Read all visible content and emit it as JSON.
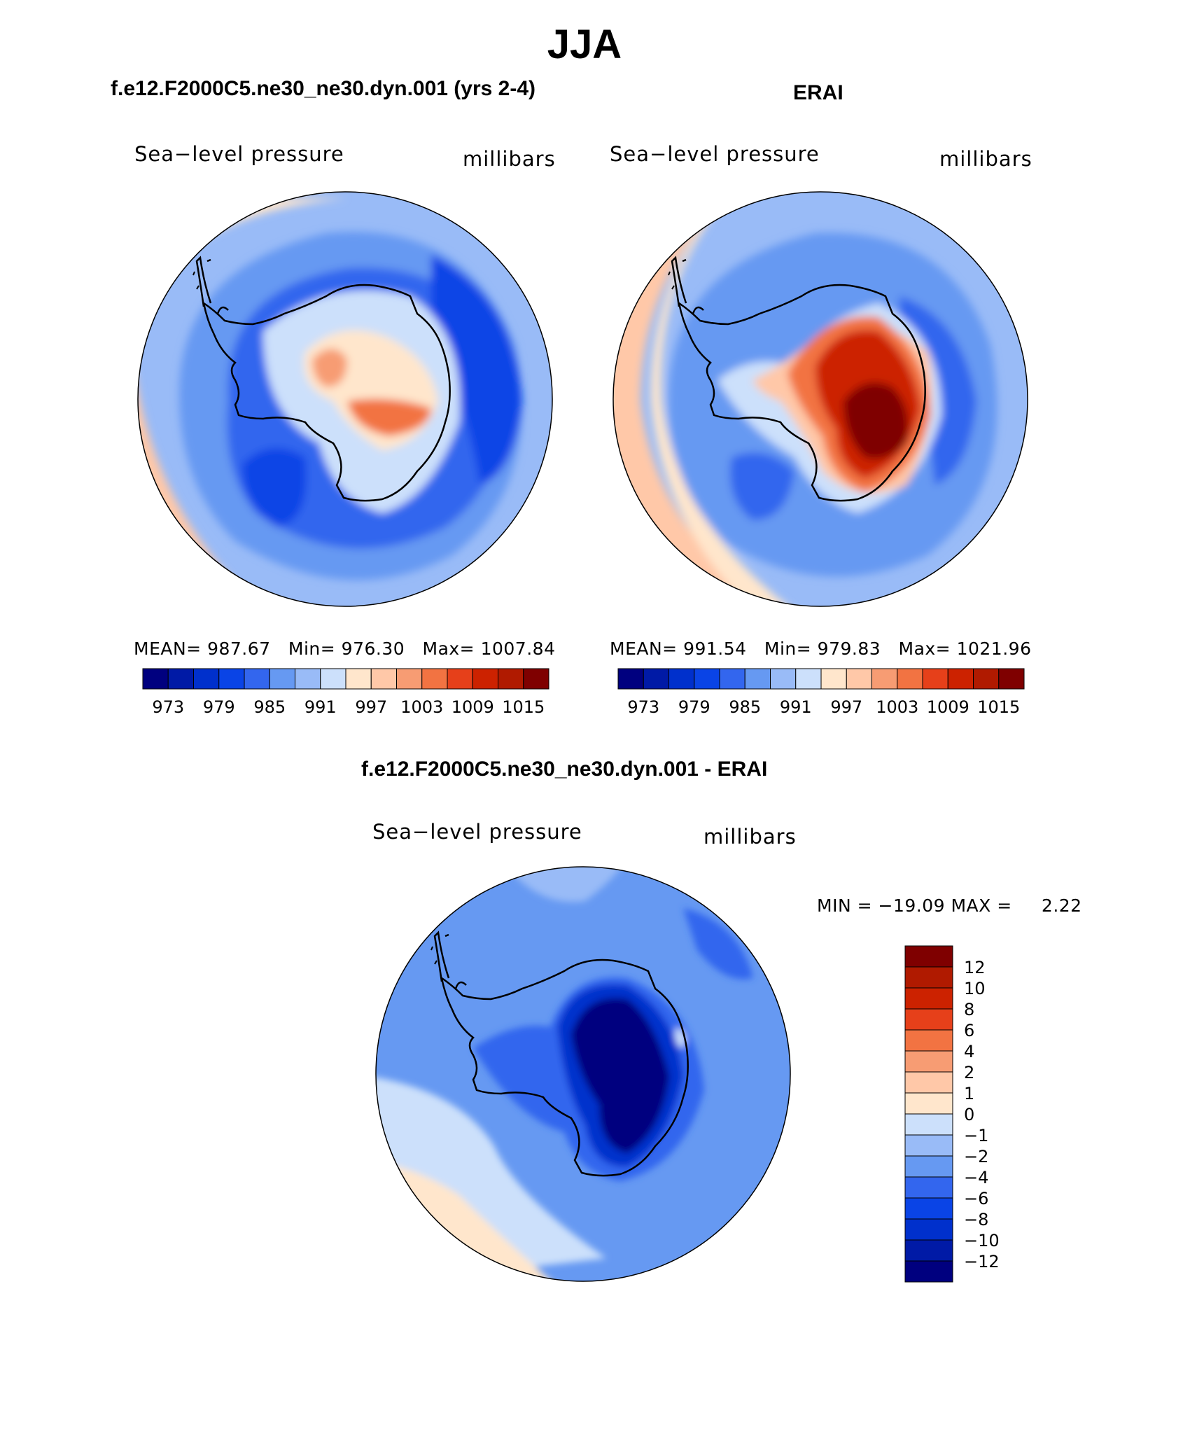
{
  "title": "JJA",
  "colors": {
    "slp_scale": [
      "#00007f",
      "#001aa6",
      "#0030cc",
      "#0a44e6",
      "#3366ee",
      "#6699f2",
      "#99bbf7",
      "#cce0fb",
      "#ffe6cc",
      "#ffc8a8",
      "#f79c73",
      "#f27342",
      "#e6401a",
      "#cc2200",
      "#b01a00",
      "#7f0000"
    ],
    "diff_scale": [
      "#00007f",
      "#001aa6",
      "#0030cc",
      "#0a44e6",
      "#3366ee",
      "#6699f2",
      "#99bbf7",
      "#cce0fb",
      "#ffe6cc",
      "#ffc8a8",
      "#f79c73",
      "#f27342",
      "#e6401a",
      "#cc2200",
      "#b01a00",
      "#7f0000"
    ],
    "coastline": "#000000"
  },
  "chart_data": [
    {
      "type": "map",
      "projection": "south-polar-stereographic",
      "panel_title": "f.e12.F2000C5.ne30_ne30.dyn.001 (yrs 2-4)",
      "field_label": "Sea−level pressure",
      "units_label": "millibars",
      "stats": {
        "mean_label": "MEAN=",
        "mean": "987.67",
        "min_label": "Min=",
        "min": "976.30",
        "max_label": "Max=",
        "max": "1007.84"
      },
      "colorbar_ticks": [
        "973",
        "979",
        "985",
        "991",
        "997",
        "1003",
        "1009",
        "1015"
      ],
      "field": {
        "background": 991,
        "features": [
          {
            "name": "outer-ring-high",
            "value": 999
          },
          {
            "name": "circumpolar-trough",
            "value": 977
          },
          {
            "name": "interior-high-east",
            "value": 1005
          },
          {
            "name": "interior-high-west",
            "value": 1003
          }
        ]
      }
    },
    {
      "type": "map",
      "projection": "south-polar-stereographic",
      "panel_title": "ERAI",
      "field_label": "Sea−level pressure",
      "units_label": "millibars",
      "stats": {
        "mean_label": "MEAN=",
        "mean": "991.54",
        "min_label": "Min=",
        "min": "979.83",
        "max_label": "Max=",
        "max": "1021.96"
      },
      "colorbar_ticks": [
        "973",
        "979",
        "985",
        "991",
        "997",
        "1003",
        "1009",
        "1015"
      ],
      "field": {
        "background": 991,
        "features": [
          {
            "name": "outer-ring-high",
            "value": 1001
          },
          {
            "name": "circumpolar-trough",
            "value": 981
          },
          {
            "name": "antarctic-high",
            "value": 1019
          }
        ]
      }
    },
    {
      "type": "map",
      "projection": "south-polar-stereographic",
      "panel_title": "f.e12.F2000C5.ne30_ne30.dyn.001 - ERAI",
      "field_label": "Sea−level pressure",
      "units_label": "millibars",
      "stats": {
        "min_label": "MIN =",
        "min": "−19.09",
        "max_label": "MAX =",
        "max": "2.22"
      },
      "colorbar_ticks": [
        "12",
        "10",
        "8",
        "6",
        "4",
        "2",
        "1",
        "0",
        "−1",
        "−2",
        "−4",
        "−6",
        "−8",
        "−10",
        "−12"
      ],
      "field": {
        "background": -3,
        "features": [
          {
            "name": "interior-low",
            "value": -14
          },
          {
            "name": "pacific-positive",
            "value": 1.5
          }
        ]
      }
    }
  ]
}
